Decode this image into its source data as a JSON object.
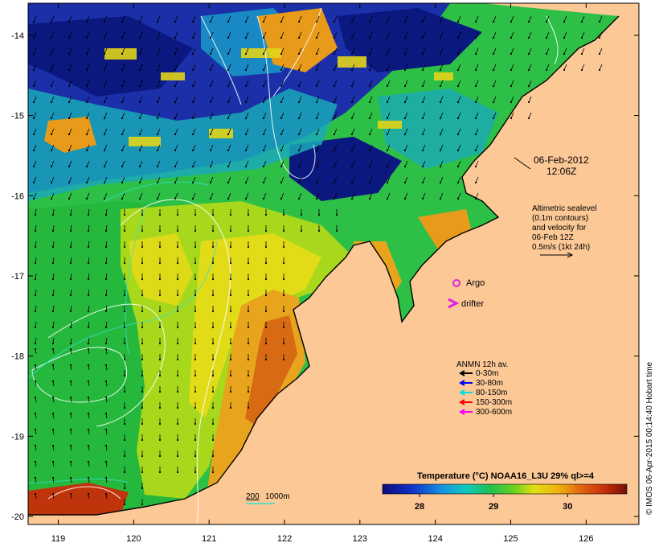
{
  "map": {
    "date": "06-Feb-2012",
    "time": "12:06Z",
    "lon_ticks": [
      "119",
      "120",
      "121",
      "122",
      "123",
      "124",
      "125",
      "126"
    ],
    "lat_ticks": [
      "-14",
      "-15",
      "-16",
      "-17",
      "-18",
      "-19",
      "-20"
    ],
    "lon_range": [
      118.6,
      126.7
    ],
    "lat_range": [
      -20.1,
      -13.6
    ],
    "colors": {
      "land": "#fcc896",
      "deep_blue": "#00189a",
      "teal": "#14b0b4",
      "green": "#22c43a",
      "yellow": "#e8e01a",
      "orange": "#e89a1a"
    }
  },
  "sealevel": {
    "lines": [
      "Altimetric sealevel",
      "(0.1m contours)",
      "and velocity for",
      "06-Feb 12Z",
      "0.5m/s (1kt 24h)"
    ]
  },
  "markers": {
    "argo_label": "Argo",
    "drifter_label": "drifter",
    "argo_color": "#e020e0",
    "drifter_color": "#e020e0"
  },
  "anmn": {
    "title": "ANMN 12h av.",
    "items": [
      {
        "label": "0-30m",
        "color": "#000000"
      },
      {
        "label": "30-80m",
        "color": "#0000ff"
      },
      {
        "label": "80-150m",
        "color": "#00e0e0"
      },
      {
        "label": "150-300m",
        "color": "#ff0000"
      },
      {
        "label": "300-600m",
        "color": "#ff00ff"
      }
    ]
  },
  "isobath_legend": {
    "label_a": "200",
    "label_b": "1000m",
    "color": "#30e0d0"
  },
  "colorbar": {
    "title": "Temperature (°C) NOAA16_L3U 29% ql>=4",
    "ticks": [
      "28",
      "29",
      "30"
    ],
    "range": [
      27.5,
      30.8
    ]
  },
  "credit": "© IMOS 06-Apr-2015 00:14:40 Hobart time"
}
